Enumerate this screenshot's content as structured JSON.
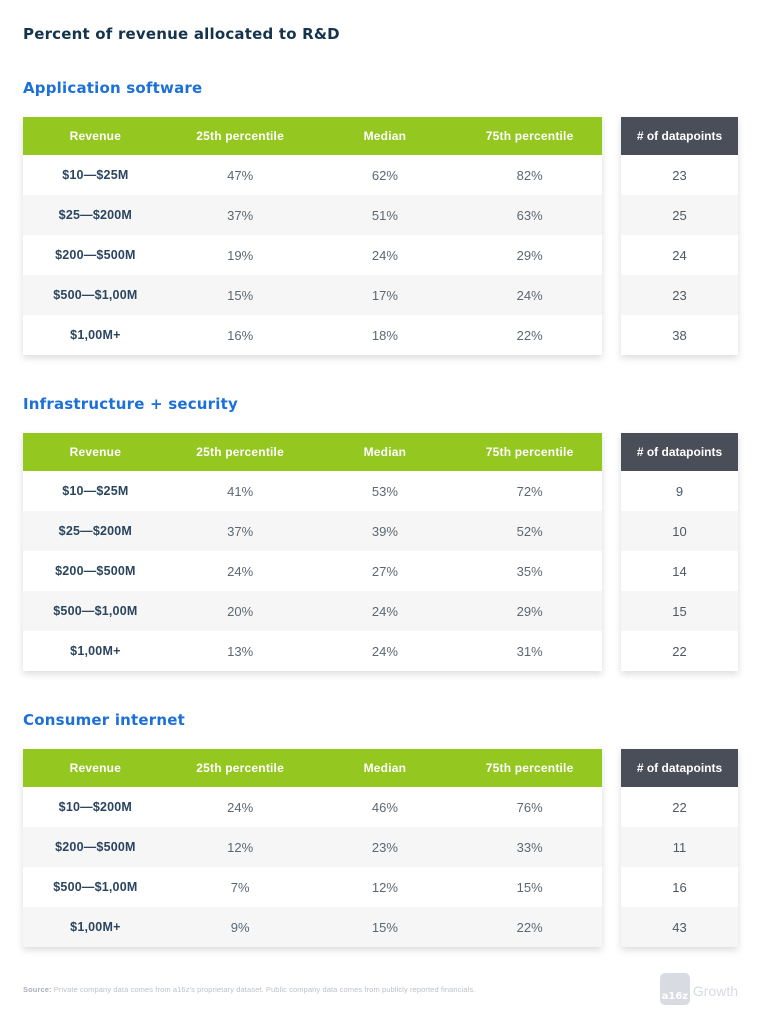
{
  "page": {
    "title": "Percent of revenue allocated to R&D"
  },
  "colors": {
    "green_header": "#94C720",
    "dark_header": "#4A4E58",
    "section_heading_blue": "#1C70D7",
    "title_navy": "#16334D",
    "row_alt": "#F6F6F6",
    "value_text": "#5D6772",
    "revenue_text": "#2B455F"
  },
  "table_headers": {
    "columns": [
      "Revenue",
      "25th percentile",
      "Median",
      "75th percentile"
    ],
    "datapoints": "# of datapoints"
  },
  "sections": [
    {
      "heading": "Application software",
      "rows": [
        {
          "revenue": "$10—$25M",
          "p25": "47%",
          "median": "62%",
          "p75": "82%",
          "datapoints": "23"
        },
        {
          "revenue": "$25—$200M",
          "p25": "37%",
          "median": "51%",
          "p75": "63%",
          "datapoints": "25"
        },
        {
          "revenue": "$200—$500M",
          "p25": "19%",
          "median": "24%",
          "p75": "29%",
          "datapoints": "24"
        },
        {
          "revenue": "$500—$1,00M",
          "p25": "15%",
          "median": "17%",
          "p75": "24%",
          "datapoints": "23"
        },
        {
          "revenue": "$1,00M+",
          "p25": "16%",
          "median": "18%",
          "p75": "22%",
          "datapoints": "38"
        }
      ]
    },
    {
      "heading": "Infrastructure + security",
      "rows": [
        {
          "revenue": "$10—$25M",
          "p25": "41%",
          "median": "53%",
          "p75": "72%",
          "datapoints": "9"
        },
        {
          "revenue": "$25—$200M",
          "p25": "37%",
          "median": "39%",
          "p75": "52%",
          "datapoints": "10"
        },
        {
          "revenue": "$200—$500M",
          "p25": "24%",
          "median": "27%",
          "p75": "35%",
          "datapoints": "14"
        },
        {
          "revenue": "$500—$1,00M",
          "p25": "20%",
          "median": "24%",
          "p75": "29%",
          "datapoints": "15"
        },
        {
          "revenue": "$1,00M+",
          "p25": "13%",
          "median": "24%",
          "p75": "31%",
          "datapoints": "22"
        }
      ]
    },
    {
      "heading": "Consumer internet",
      "rows": [
        {
          "revenue": "$10—$200M",
          "p25": "24%",
          "median": "46%",
          "p75": "76%",
          "datapoints": "22"
        },
        {
          "revenue": "$200—$500M",
          "p25": "12%",
          "median": "23%",
          "p75": "33%",
          "datapoints": "11"
        },
        {
          "revenue": "$500—$1,00M",
          "p25": "7%",
          "median": "12%",
          "p75": "15%",
          "datapoints": "16"
        },
        {
          "revenue": "$1,00M+",
          "p25": "9%",
          "median": "15%",
          "p75": "22%",
          "datapoints": "43"
        }
      ]
    }
  ],
  "footer": {
    "source_bold": "Source:",
    "source_text": " Private company data comes from a16z's proprietary dataset. Public company data comes from publicly reported financials.",
    "logo_square": "a16z",
    "logo_text": "Growth"
  },
  "chart_data": [
    {
      "type": "table",
      "title": "Application software",
      "columns": [
        "Revenue",
        "25th percentile",
        "Median",
        "75th percentile",
        "# of datapoints"
      ],
      "rows": [
        [
          "$10—$25M",
          47,
          62,
          82,
          23
        ],
        [
          "$25—$200M",
          37,
          51,
          63,
          25
        ],
        [
          "$200—$500M",
          19,
          24,
          29,
          24
        ],
        [
          "$500—$1,00M",
          15,
          17,
          24,
          23
        ],
        [
          "$1,00M+",
          16,
          18,
          22,
          38
        ]
      ],
      "units": "percent of revenue allocated to R&D"
    },
    {
      "type": "table",
      "title": "Infrastructure + security",
      "columns": [
        "Revenue",
        "25th percentile",
        "Median",
        "75th percentile",
        "# of datapoints"
      ],
      "rows": [
        [
          "$10—$25M",
          41,
          53,
          72,
          9
        ],
        [
          "$25—$200M",
          37,
          39,
          52,
          10
        ],
        [
          "$200—$500M",
          24,
          27,
          35,
          14
        ],
        [
          "$500—$1,00M",
          20,
          24,
          29,
          15
        ],
        [
          "$1,00M+",
          13,
          24,
          31,
          22
        ]
      ],
      "units": "percent of revenue allocated to R&D"
    },
    {
      "type": "table",
      "title": "Consumer internet",
      "columns": [
        "Revenue",
        "25th percentile",
        "Median",
        "75th percentile",
        "# of datapoints"
      ],
      "rows": [
        [
          "$10—$200M",
          24,
          46,
          76,
          22
        ],
        [
          "$200—$500M",
          12,
          23,
          33,
          11
        ],
        [
          "$500—$1,00M",
          7,
          12,
          15,
          16
        ],
        [
          "$1,00M+",
          9,
          15,
          22,
          43
        ]
      ],
      "units": "percent of revenue allocated to R&D"
    }
  ]
}
